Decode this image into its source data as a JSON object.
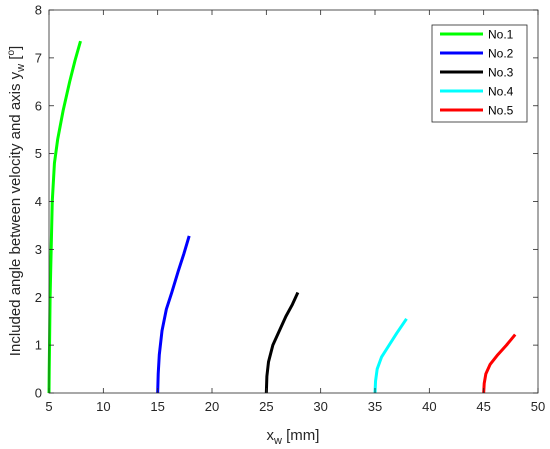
{
  "chart_data": {
    "type": "line",
    "xlabel": {
      "main": "x",
      "sub": "w",
      "rest": " [mm]"
    },
    "ylabel": {
      "main": "Included angle between velocity and axis y",
      "sub": "w",
      "bracket_open": " [",
      "sup": "o",
      "bracket_close": "]"
    },
    "xlim": [
      5,
      50
    ],
    "ylim": [
      0,
      8
    ],
    "xticks": [
      5,
      10,
      15,
      20,
      25,
      30,
      35,
      40,
      45,
      50
    ],
    "yticks": [
      0,
      1,
      2,
      3,
      4,
      5,
      6,
      7,
      8
    ],
    "grid": false,
    "legend_position": "top-right",
    "series": [
      {
        "name": "No.1",
        "color": "#00ff00",
        "x": [
          5.0,
          5.02,
          5.05,
          5.1,
          5.2,
          5.3,
          5.5,
          5.8,
          6.3,
          6.9,
          7.4,
          7.9
        ],
        "y": [
          0.0,
          0.5,
          1.0,
          2.0,
          3.0,
          4.0,
          4.8,
          5.3,
          5.9,
          6.5,
          6.95,
          7.35
        ]
      },
      {
        "name": "No.2",
        "color": "#0000ff",
        "x": [
          15.0,
          15.05,
          15.15,
          15.4,
          15.8,
          16.3,
          16.9,
          17.4,
          17.9
        ],
        "y": [
          0.0,
          0.4,
          0.8,
          1.3,
          1.75,
          2.1,
          2.55,
          2.9,
          3.28
        ]
      },
      {
        "name": "No.3",
        "color": "#000000",
        "x": [
          25.0,
          25.05,
          25.2,
          25.6,
          26.2,
          26.8,
          27.4,
          27.9
        ],
        "y": [
          0.0,
          0.35,
          0.65,
          1.0,
          1.3,
          1.6,
          1.85,
          2.1
        ]
      },
      {
        "name": "No.4",
        "color": "#00ffff",
        "x": [
          35.0,
          35.05,
          35.2,
          35.6,
          36.3,
          37.0,
          37.9
        ],
        "y": [
          0.0,
          0.25,
          0.5,
          0.75,
          1.0,
          1.25,
          1.55
        ]
      },
      {
        "name": "No.5",
        "color": "#ff0000",
        "x": [
          45.0,
          45.05,
          45.2,
          45.6,
          46.3,
          47.1,
          47.9
        ],
        "y": [
          0.0,
          0.2,
          0.4,
          0.6,
          0.8,
          1.0,
          1.22
        ]
      }
    ]
  }
}
